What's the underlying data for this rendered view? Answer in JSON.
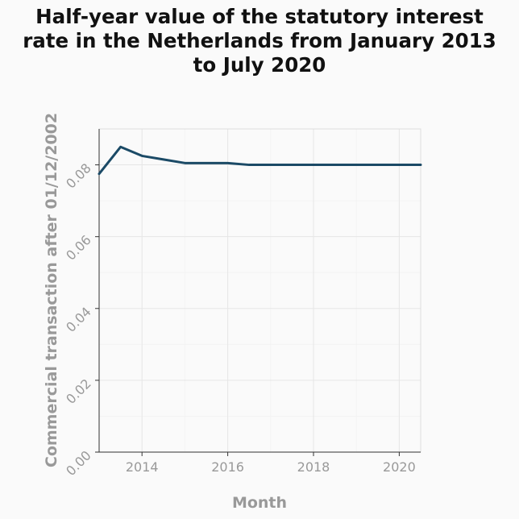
{
  "chart_data": {
    "type": "line",
    "title_lines": [
      "Half-year value of the statutory interest",
      "rate in the Netherlands from January 2013",
      "to July 2020"
    ],
    "xlabel": "Month",
    "ylabel": "Commercial transaction after 01/12/2002",
    "xlim": [
      2013.0,
      2020.5
    ],
    "ylim": [
      0.0,
      0.09
    ],
    "x_ticks": [
      2014,
      2016,
      2018,
      2020
    ],
    "x_tick_labels": [
      "2014",
      "2016",
      "2018",
      "2020"
    ],
    "y_ticks": [
      0.0,
      0.02,
      0.04,
      0.06,
      0.08
    ],
    "y_tick_labels": [
      "0.00",
      "0.02",
      "0.04",
      "0.06",
      "0.08"
    ],
    "grid": true,
    "series": [
      {
        "color": "#1b4a66",
        "x": [
          "Jan 2013",
          "Jul 2013",
          "Jan 2014",
          "Jul 2014",
          "Jan 2015",
          "Jul 2015",
          "Jan 2016",
          "Jul 2016",
          "Jan 2017",
          "Jul 2017",
          "Jan 2018",
          "Jul 2018",
          "Jan 2019",
          "Jul 2019",
          "Jan 2020",
          "Jul 2020"
        ],
        "y": [
          0.0775,
          0.085,
          0.0825,
          0.0815,
          0.0805,
          0.0805,
          0.0805,
          0.08,
          0.08,
          0.08,
          0.08,
          0.08,
          0.08,
          0.08,
          0.08,
          0.08
        ]
      }
    ]
  }
}
